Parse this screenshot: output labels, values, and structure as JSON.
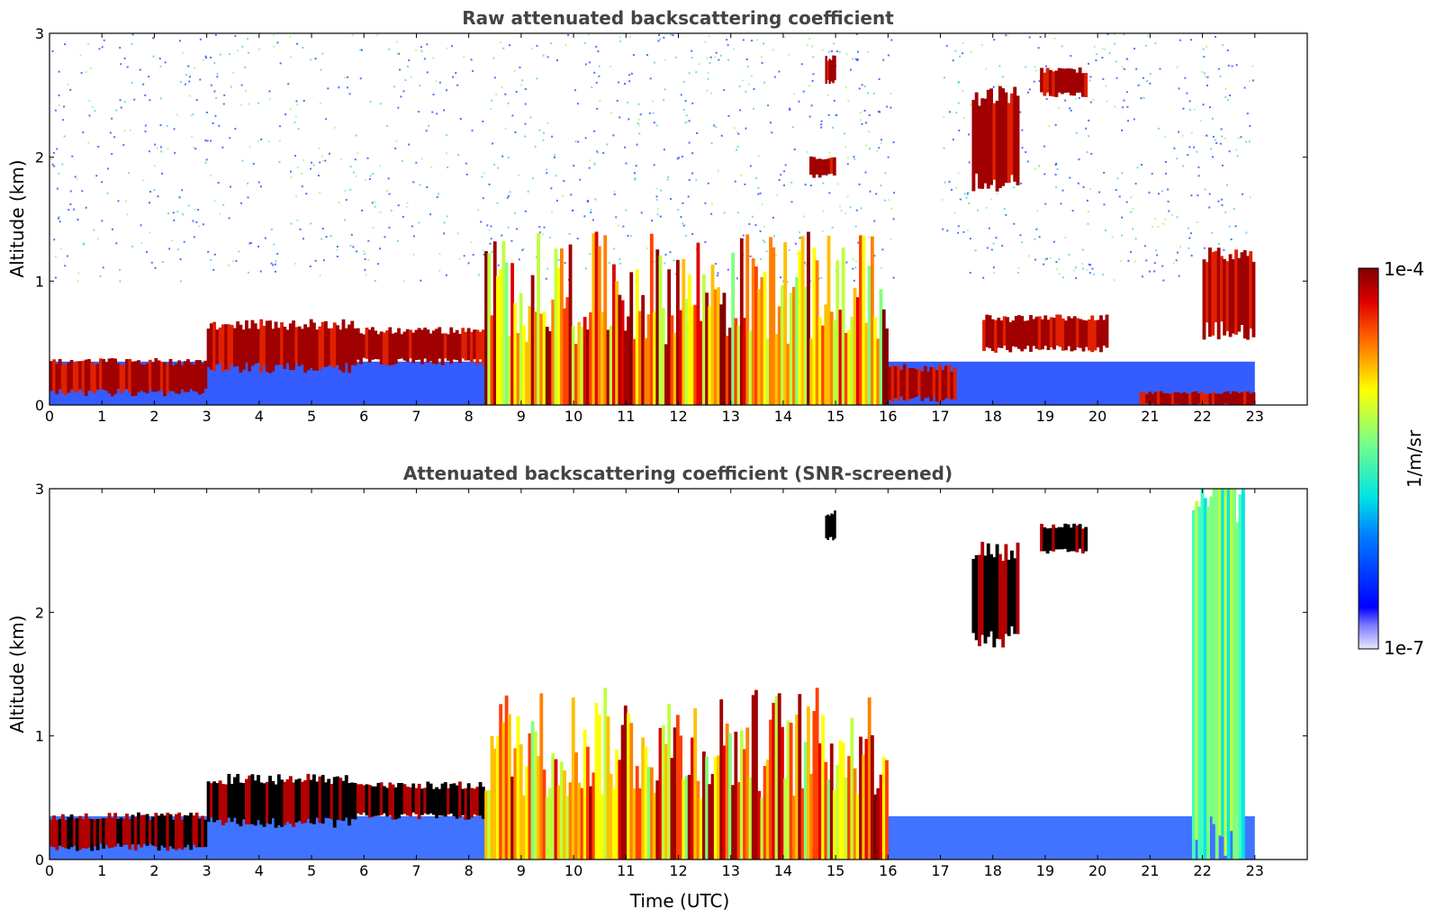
{
  "chart_data": [
    {
      "type": "heatmap",
      "panel": "top",
      "title": "Raw attenuated backscattering coefficient",
      "ylabel": "Altitude (km)",
      "xlabel": "",
      "xlim": [
        0,
        24
      ],
      "ylim": [
        0,
        3
      ],
      "xticks": [
        0,
        1,
        2,
        3,
        4,
        5,
        6,
        7,
        8,
        9,
        10,
        11,
        12,
        13,
        14,
        15,
        16,
        17,
        18,
        19,
        20,
        21,
        22,
        23
      ],
      "yticks": [
        0,
        1,
        2,
        3
      ],
      "data_extent_hours": [
        0,
        23
      ],
      "screened": false,
      "features": [
        {
          "t": [
            0.0,
            3.0
          ],
          "h": [
            0.1,
            0.35
          ],
          "level": "high"
        },
        {
          "t": [
            3.0,
            5.8
          ],
          "h": [
            0.3,
            0.65
          ],
          "level": "high"
        },
        {
          "t": [
            5.8,
            8.3
          ],
          "h": [
            0.35,
            0.6
          ],
          "level": "high"
        },
        {
          "t": [
            8.3,
            16.0
          ],
          "h": [
            0.0,
            1.4
          ],
          "level": "convective"
        },
        {
          "t": [
            14.5,
            15.0
          ],
          "h": [
            1.85,
            2.0
          ],
          "level": "high"
        },
        {
          "t": [
            14.8,
            15.0
          ],
          "h": [
            2.6,
            2.8
          ],
          "level": "high"
        },
        {
          "t": [
            16.0,
            17.3
          ],
          "h": [
            0.05,
            0.3
          ],
          "level": "high"
        },
        {
          "t": [
            17.6,
            18.5
          ],
          "h": [
            1.8,
            2.5
          ],
          "level": "high"
        },
        {
          "t": [
            18.9,
            19.8
          ],
          "h": [
            2.5,
            2.7
          ],
          "level": "high"
        },
        {
          "t": [
            17.8,
            20.2
          ],
          "h": [
            0.45,
            0.7
          ],
          "level": "high"
        },
        {
          "t": [
            20.8,
            23.0
          ],
          "h": [
            0.0,
            0.1
          ],
          "level": "high"
        },
        {
          "t": [
            22.0,
            23.0
          ],
          "h": [
            0.6,
            1.2
          ],
          "level": "high"
        }
      ]
    },
    {
      "type": "heatmap",
      "panel": "bottom",
      "title": "Attenuated backscattering coefficient (SNR-screened)",
      "ylabel": "Altitude (km)",
      "xlabel": "Time (UTC)",
      "xlim": [
        0,
        24
      ],
      "ylim": [
        0,
        3
      ],
      "xticks": [
        0,
        1,
        2,
        3,
        4,
        5,
        6,
        7,
        8,
        9,
        10,
        11,
        12,
        13,
        14,
        15,
        16,
        17,
        18,
        19,
        20,
        21,
        22,
        23
      ],
      "yticks": [
        0,
        1,
        2,
        3
      ],
      "data_extent_hours": [
        0,
        23
      ],
      "screened": true,
      "features": [
        {
          "t": [
            0.0,
            3.0
          ],
          "h": [
            0.1,
            0.35
          ],
          "level": "saturated"
        },
        {
          "t": [
            3.0,
            5.8
          ],
          "h": [
            0.3,
            0.65
          ],
          "level": "saturated"
        },
        {
          "t": [
            5.8,
            8.3
          ],
          "h": [
            0.35,
            0.6
          ],
          "level": "saturated"
        },
        {
          "t": [
            8.3,
            16.0
          ],
          "h": [
            0.0,
            1.4
          ],
          "level": "convective"
        },
        {
          "t": [
            14.8,
            15.0
          ],
          "h": [
            2.6,
            2.8
          ],
          "level": "saturated"
        },
        {
          "t": [
            17.6,
            18.5
          ],
          "h": [
            1.8,
            2.5
          ],
          "level": "saturated"
        },
        {
          "t": [
            18.9,
            19.8
          ],
          "h": [
            2.5,
            2.7
          ],
          "level": "saturated"
        },
        {
          "t": [
            21.8,
            22.8
          ],
          "h": [
            0.0,
            3.0
          ],
          "level": "moderate"
        }
      ]
    }
  ],
  "colorbar": {
    "label": "1/m/sr",
    "min_label": "1e-7",
    "max_label": "1e-4",
    "min": 1e-07,
    "max": 0.0001,
    "scale": "log",
    "colormap": "jet"
  },
  "colors": {
    "axis": "#000000",
    "title": "#444444",
    "background": "#ffffff"
  }
}
